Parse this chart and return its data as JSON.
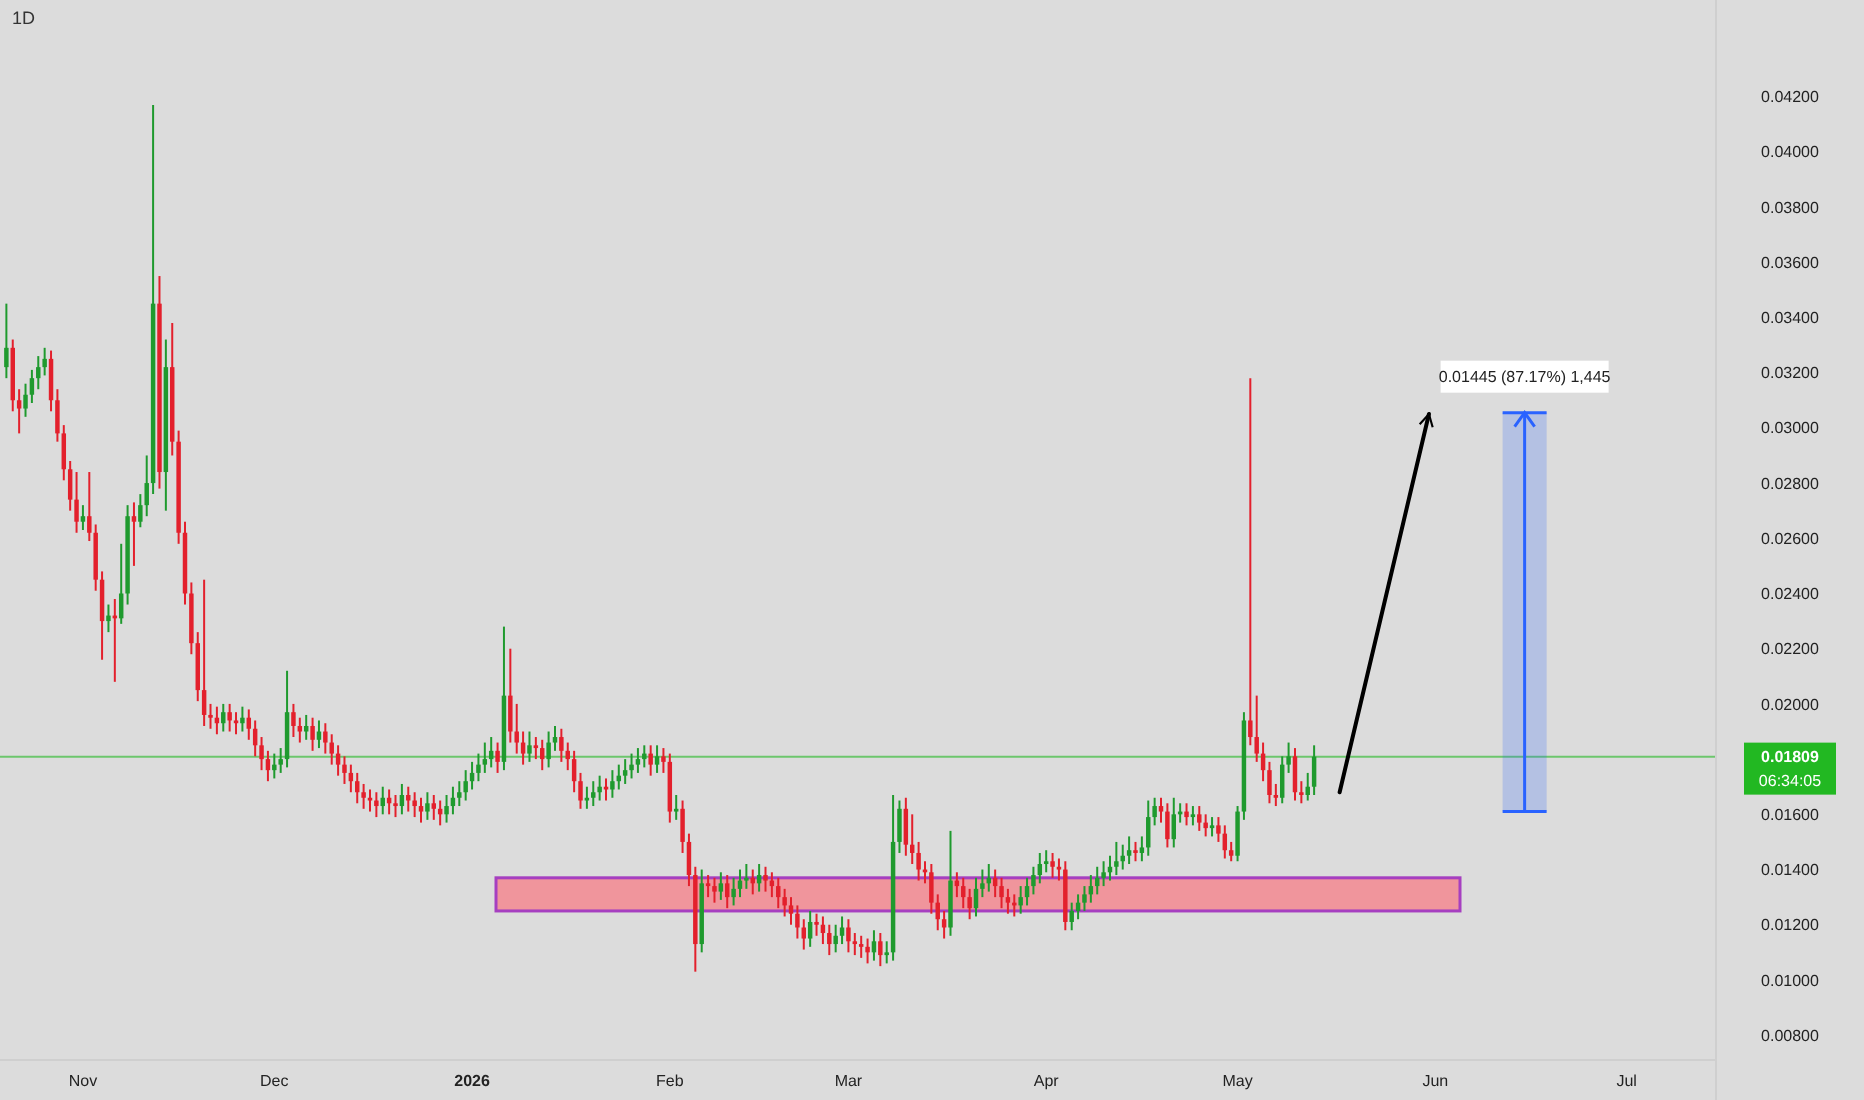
{
  "chart_data": {
    "type": "candlestick",
    "title": "1D",
    "x": [
      "2025-10-20",
      "2025-10-21",
      "2025-10-22",
      "2025-10-23",
      "2025-10-24",
      "2025-10-25",
      "2025-10-26",
      "2025-10-27",
      "2025-10-28",
      "2025-10-29",
      "2025-10-30",
      "2025-10-31",
      "2025-11-01",
      "2025-11-02",
      "2025-11-03",
      "2025-11-04",
      "2025-11-05",
      "2025-11-06",
      "2025-11-07",
      "2025-11-08",
      "2025-11-09",
      "2025-11-10",
      "2025-11-11",
      "2025-11-12",
      "2025-11-13",
      "2025-11-14",
      "2025-11-15",
      "2025-11-16",
      "2025-11-17",
      "2025-11-18",
      "2025-11-19",
      "2025-11-20",
      "2025-11-21",
      "2025-11-22",
      "2025-11-23",
      "2025-11-24",
      "2025-11-25",
      "2025-11-26",
      "2025-11-27",
      "2025-11-28",
      "2025-11-29",
      "2025-11-30",
      "2025-12-01",
      "2025-12-02",
      "2025-12-03",
      "2025-12-04",
      "2025-12-05",
      "2025-12-06",
      "2025-12-07",
      "2025-12-08",
      "2025-12-09",
      "2025-12-10",
      "2025-12-11",
      "2025-12-12",
      "2025-12-13",
      "2025-12-14",
      "2025-12-15",
      "2025-12-16",
      "2025-12-17",
      "2025-12-18",
      "2025-12-19",
      "2025-12-20",
      "2025-12-21",
      "2025-12-22",
      "2025-12-23",
      "2025-12-24",
      "2025-12-25",
      "2025-12-26",
      "2025-12-27",
      "2025-12-28",
      "2025-12-29",
      "2025-12-30",
      "2025-12-31",
      "2026-01-01",
      "2026-01-02",
      "2026-01-03",
      "2026-01-04",
      "2026-01-05",
      "2026-01-06",
      "2026-01-07",
      "2026-01-08",
      "2026-01-09",
      "2026-01-10",
      "2026-01-11",
      "2026-01-12",
      "2026-01-13",
      "2026-01-14",
      "2026-01-15",
      "2026-01-16",
      "2026-01-17",
      "2026-01-18",
      "2026-01-19",
      "2026-01-20",
      "2026-01-21",
      "2026-01-22",
      "2026-01-23",
      "2026-01-24",
      "2026-01-25",
      "2026-01-26",
      "2026-01-27",
      "2026-01-28",
      "2026-01-29",
      "2026-01-30",
      "2026-01-31",
      "2026-02-01",
      "2026-02-02",
      "2026-02-03",
      "2026-02-04",
      "2026-02-05",
      "2026-02-06",
      "2026-02-07",
      "2026-02-08",
      "2026-02-09",
      "2026-02-10",
      "2026-02-11",
      "2026-02-12",
      "2026-02-13",
      "2026-02-14",
      "2026-02-15",
      "2026-02-16",
      "2026-02-17",
      "2026-02-18",
      "2026-02-19",
      "2026-02-20",
      "2026-02-21",
      "2026-02-22",
      "2026-02-23",
      "2026-02-24",
      "2026-02-25",
      "2026-02-26",
      "2026-02-27",
      "2026-02-28",
      "2026-03-01",
      "2026-03-02",
      "2026-03-03",
      "2026-03-04",
      "2026-03-05",
      "2026-03-06",
      "2026-03-07",
      "2026-03-08",
      "2026-03-09",
      "2026-03-10",
      "2026-03-11",
      "2026-03-12",
      "2026-03-13",
      "2026-03-14",
      "2026-03-15",
      "2026-03-16",
      "2026-03-17",
      "2026-03-18",
      "2026-03-19",
      "2026-03-20",
      "2026-03-21",
      "2026-03-22",
      "2026-03-23",
      "2026-03-24",
      "2026-03-25",
      "2026-03-26",
      "2026-03-27",
      "2026-03-28",
      "2026-03-29",
      "2026-03-30",
      "2026-03-31",
      "2026-04-01",
      "2026-04-02",
      "2026-04-03",
      "2026-04-04",
      "2026-04-05",
      "2026-04-06",
      "2026-04-07",
      "2026-04-08",
      "2026-04-09",
      "2026-04-10",
      "2026-04-11",
      "2026-04-12",
      "2026-04-13",
      "2026-04-14",
      "2026-04-15",
      "2026-04-16",
      "2026-04-17",
      "2026-04-18",
      "2026-04-19",
      "2026-04-20",
      "2026-04-21",
      "2026-04-22",
      "2026-04-23",
      "2026-04-24",
      "2026-04-25",
      "2026-04-26",
      "2026-04-27",
      "2026-04-28",
      "2026-04-29",
      "2026-04-30",
      "2026-05-01",
      "2026-05-02",
      "2026-05-03",
      "2026-05-04",
      "2026-05-05",
      "2026-05-06",
      "2026-05-07",
      "2026-05-08",
      "2026-05-09",
      "2026-05-10",
      "2026-05-11",
      "2026-05-12",
      "2026-05-13"
    ],
    "ohlc": [
      [
        0.0322,
        0.0345,
        0.0318,
        0.0329
      ],
      [
        0.0329,
        0.0332,
        0.0306,
        0.031
      ],
      [
        0.031,
        0.0314,
        0.0298,
        0.0307
      ],
      [
        0.0307,
        0.0316,
        0.0304,
        0.0312
      ],
      [
        0.0312,
        0.0321,
        0.0309,
        0.0318
      ],
      [
        0.0318,
        0.0326,
        0.0314,
        0.0322
      ],
      [
        0.0322,
        0.0329,
        0.0319,
        0.0325
      ],
      [
        0.0325,
        0.0328,
        0.0306,
        0.031
      ],
      [
        0.031,
        0.0314,
        0.0295,
        0.0298
      ],
      [
        0.0298,
        0.0301,
        0.0281,
        0.0285
      ],
      [
        0.0285,
        0.0288,
        0.027,
        0.0274
      ],
      [
        0.0274,
        0.0284,
        0.0262,
        0.0266
      ],
      [
        0.0266,
        0.0272,
        0.0263,
        0.0268
      ],
      [
        0.0268,
        0.0284,
        0.0259,
        0.0262
      ],
      [
        0.0262,
        0.0265,
        0.0241,
        0.0245
      ],
      [
        0.0245,
        0.0248,
        0.0216,
        0.023
      ],
      [
        0.023,
        0.0236,
        0.0226,
        0.0232
      ],
      [
        0.0232,
        0.0238,
        0.0208,
        0.0231
      ],
      [
        0.0231,
        0.0258,
        0.0229,
        0.024
      ],
      [
        0.024,
        0.0272,
        0.0236,
        0.0268
      ],
      [
        0.0268,
        0.0273,
        0.025,
        0.0266
      ],
      [
        0.0266,
        0.0276,
        0.0264,
        0.0272
      ],
      [
        0.0272,
        0.029,
        0.0268,
        0.028
      ],
      [
        0.028,
        0.0417,
        0.0276,
        0.0345
      ],
      [
        0.0345,
        0.0355,
        0.0278,
        0.0284
      ],
      [
        0.0284,
        0.0332,
        0.027,
        0.0322
      ],
      [
        0.0322,
        0.0338,
        0.029,
        0.0295
      ],
      [
        0.0295,
        0.0299,
        0.0258,
        0.0262
      ],
      [
        0.0262,
        0.0266,
        0.0236,
        0.024
      ],
      [
        0.024,
        0.0244,
        0.0218,
        0.0222
      ],
      [
        0.0222,
        0.0226,
        0.0201,
        0.0205
      ],
      [
        0.0205,
        0.0245,
        0.0192,
        0.0196
      ],
      [
        0.0196,
        0.02,
        0.0191,
        0.0195
      ],
      [
        0.0195,
        0.0199,
        0.0189,
        0.0193
      ],
      [
        0.0193,
        0.02,
        0.019,
        0.0197
      ],
      [
        0.0197,
        0.02,
        0.019,
        0.0194
      ],
      [
        0.0194,
        0.0197,
        0.0189,
        0.0193
      ],
      [
        0.0193,
        0.0199,
        0.019,
        0.0195
      ],
      [
        0.0195,
        0.0198,
        0.0187,
        0.0191
      ],
      [
        0.0191,
        0.0194,
        0.0181,
        0.0185
      ],
      [
        0.0185,
        0.0188,
        0.0176,
        0.018
      ],
      [
        0.018,
        0.0183,
        0.0172,
        0.0176
      ],
      [
        0.0176,
        0.0182,
        0.0173,
        0.0178
      ],
      [
        0.0178,
        0.0184,
        0.0175,
        0.018
      ],
      [
        0.018,
        0.0212,
        0.0177,
        0.0197
      ],
      [
        0.0197,
        0.02,
        0.0188,
        0.0192
      ],
      [
        0.0192,
        0.0195,
        0.0186,
        0.019
      ],
      [
        0.019,
        0.0196,
        0.0187,
        0.0192
      ],
      [
        0.0192,
        0.0195,
        0.0183,
        0.0187
      ],
      [
        0.0187,
        0.0194,
        0.0184,
        0.019
      ],
      [
        0.019,
        0.0193,
        0.0182,
        0.0186
      ],
      [
        0.0186,
        0.0189,
        0.0178,
        0.0182
      ],
      [
        0.0182,
        0.0185,
        0.0174,
        0.0178
      ],
      [
        0.0178,
        0.0181,
        0.0171,
        0.0175
      ],
      [
        0.0175,
        0.0178,
        0.0168,
        0.0172
      ],
      [
        0.0172,
        0.0175,
        0.0164,
        0.0168
      ],
      [
        0.0168,
        0.0171,
        0.0162,
        0.0166
      ],
      [
        0.0166,
        0.0169,
        0.0161,
        0.0165
      ],
      [
        0.0165,
        0.0168,
        0.0159,
        0.0163
      ],
      [
        0.0163,
        0.017,
        0.016,
        0.0166
      ],
      [
        0.0166,
        0.0169,
        0.016,
        0.0164
      ],
      [
        0.0164,
        0.0167,
        0.0159,
        0.0163
      ],
      [
        0.0163,
        0.0171,
        0.016,
        0.0167
      ],
      [
        0.0167,
        0.017,
        0.0161,
        0.0165
      ],
      [
        0.0165,
        0.0168,
        0.0159,
        0.0163
      ],
      [
        0.0163,
        0.0166,
        0.0157,
        0.0161
      ],
      [
        0.0161,
        0.0168,
        0.0158,
        0.0164
      ],
      [
        0.0164,
        0.0167,
        0.0158,
        0.0162
      ],
      [
        0.0162,
        0.0165,
        0.0156,
        0.016
      ],
      [
        0.016,
        0.0167,
        0.0157,
        0.0163
      ],
      [
        0.0163,
        0.017,
        0.016,
        0.0166
      ],
      [
        0.0166,
        0.0172,
        0.0163,
        0.0168
      ],
      [
        0.0168,
        0.0176,
        0.0165,
        0.0172
      ],
      [
        0.0172,
        0.0179,
        0.0169,
        0.0175
      ],
      [
        0.0175,
        0.0182,
        0.0172,
        0.0178
      ],
      [
        0.0178,
        0.0186,
        0.0175,
        0.018
      ],
      [
        0.018,
        0.0188,
        0.0177,
        0.0183
      ],
      [
        0.0183,
        0.0186,
        0.0175,
        0.0179
      ],
      [
        0.0179,
        0.0228,
        0.0176,
        0.0203
      ],
      [
        0.0203,
        0.022,
        0.0186,
        0.019
      ],
      [
        0.019,
        0.02,
        0.0182,
        0.0186
      ],
      [
        0.0186,
        0.019,
        0.0178,
        0.0182
      ],
      [
        0.0182,
        0.019,
        0.0179,
        0.0185
      ],
      [
        0.0185,
        0.0188,
        0.018,
        0.0184
      ],
      [
        0.0184,
        0.0187,
        0.0176,
        0.018
      ],
      [
        0.018,
        0.019,
        0.0177,
        0.0186
      ],
      [
        0.0186,
        0.0192,
        0.0183,
        0.0188
      ],
      [
        0.0188,
        0.0191,
        0.0179,
        0.0183
      ],
      [
        0.0183,
        0.0186,
        0.0176,
        0.018
      ],
      [
        0.018,
        0.0183,
        0.0168,
        0.0172
      ],
      [
        0.0172,
        0.0175,
        0.0162,
        0.0165
      ],
      [
        0.0165,
        0.017,
        0.0162,
        0.0166
      ],
      [
        0.0166,
        0.0172,
        0.0163,
        0.0168
      ],
      [
        0.0168,
        0.0174,
        0.0165,
        0.017
      ],
      [
        0.017,
        0.0173,
        0.0165,
        0.0169
      ],
      [
        0.0169,
        0.0176,
        0.0166,
        0.0172
      ],
      [
        0.0172,
        0.0178,
        0.0169,
        0.0174
      ],
      [
        0.0174,
        0.018,
        0.0171,
        0.0176
      ],
      [
        0.0176,
        0.0182,
        0.0173,
        0.0178
      ],
      [
        0.0178,
        0.0184,
        0.0175,
        0.018
      ],
      [
        0.018,
        0.0185,
        0.0177,
        0.0182
      ],
      [
        0.0182,
        0.0185,
        0.0174,
        0.0178
      ],
      [
        0.0178,
        0.0185,
        0.0175,
        0.0181
      ],
      [
        0.0181,
        0.0184,
        0.0175,
        0.0179
      ],
      [
        0.0179,
        0.0182,
        0.0157,
        0.0161
      ],
      [
        0.0161,
        0.0167,
        0.0158,
        0.0162
      ],
      [
        0.0162,
        0.0165,
        0.0146,
        0.015
      ],
      [
        0.015,
        0.0153,
        0.0134,
        0.0138
      ],
      [
        0.0138,
        0.0141,
        0.0103,
        0.0113
      ],
      [
        0.0113,
        0.014,
        0.011,
        0.0135
      ],
      [
        0.0135,
        0.0138,
        0.013,
        0.0134
      ],
      [
        0.0134,
        0.0137,
        0.0128,
        0.0132
      ],
      [
        0.0132,
        0.0139,
        0.0129,
        0.0135
      ],
      [
        0.0135,
        0.0138,
        0.0126,
        0.013
      ],
      [
        0.013,
        0.0137,
        0.0127,
        0.0133
      ],
      [
        0.0133,
        0.014,
        0.013,
        0.0136
      ],
      [
        0.0136,
        0.0142,
        0.0133,
        0.0137
      ],
      [
        0.0137,
        0.014,
        0.0131,
        0.0135
      ],
      [
        0.0135,
        0.0142,
        0.0132,
        0.0138
      ],
      [
        0.0138,
        0.0141,
        0.0132,
        0.0136
      ],
      [
        0.0136,
        0.0139,
        0.013,
        0.0134
      ],
      [
        0.0134,
        0.0137,
        0.0126,
        0.013
      ],
      [
        0.013,
        0.0133,
        0.0123,
        0.0127
      ],
      [
        0.0127,
        0.013,
        0.012,
        0.0124
      ],
      [
        0.0124,
        0.0127,
        0.0115,
        0.0119
      ],
      [
        0.0119,
        0.0122,
        0.0111,
        0.0115
      ],
      [
        0.0115,
        0.0125,
        0.0112,
        0.0121
      ],
      [
        0.0121,
        0.0124,
        0.0116,
        0.012
      ],
      [
        0.012,
        0.0123,
        0.0113,
        0.0117
      ],
      [
        0.0117,
        0.012,
        0.0109,
        0.0113
      ],
      [
        0.0113,
        0.012,
        0.011,
        0.0116
      ],
      [
        0.0116,
        0.0123,
        0.0113,
        0.0119
      ],
      [
        0.0119,
        0.0122,
        0.011,
        0.0114
      ],
      [
        0.0114,
        0.0117,
        0.0109,
        0.0113
      ],
      [
        0.0113,
        0.0116,
        0.0108,
        0.0112
      ],
      [
        0.0112,
        0.0115,
        0.0106,
        0.011
      ],
      [
        0.011,
        0.0118,
        0.0107,
        0.0114
      ],
      [
        0.0114,
        0.0117,
        0.0105,
        0.0109
      ],
      [
        0.0109,
        0.0114,
        0.0106,
        0.011
      ],
      [
        0.011,
        0.0167,
        0.0107,
        0.015
      ],
      [
        0.015,
        0.0165,
        0.0146,
        0.0162
      ],
      [
        0.0162,
        0.0166,
        0.0145,
        0.0149
      ],
      [
        0.0149,
        0.016,
        0.0142,
        0.0146
      ],
      [
        0.0146,
        0.015,
        0.0136,
        0.014
      ],
      [
        0.014,
        0.0143,
        0.0135,
        0.0139
      ],
      [
        0.0139,
        0.0142,
        0.0124,
        0.0128
      ],
      [
        0.0128,
        0.0131,
        0.0118,
        0.0122
      ],
      [
        0.0122,
        0.0125,
        0.0115,
        0.0119
      ],
      [
        0.0119,
        0.0154,
        0.0116,
        0.0136
      ],
      [
        0.0136,
        0.0139,
        0.013,
        0.0134
      ],
      [
        0.0134,
        0.0137,
        0.0126,
        0.013
      ],
      [
        0.013,
        0.0133,
        0.0122,
        0.0126
      ],
      [
        0.0126,
        0.0137,
        0.0123,
        0.0133
      ],
      [
        0.0133,
        0.014,
        0.013,
        0.0135
      ],
      [
        0.0135,
        0.0142,
        0.0132,
        0.0137
      ],
      [
        0.0137,
        0.014,
        0.013,
        0.0134
      ],
      [
        0.0134,
        0.0137,
        0.0126,
        0.013
      ],
      [
        0.013,
        0.0133,
        0.0124,
        0.0128
      ],
      [
        0.0128,
        0.0131,
        0.0123,
        0.0127
      ],
      [
        0.0127,
        0.0134,
        0.0124,
        0.013
      ],
      [
        0.013,
        0.0137,
        0.0127,
        0.0134
      ],
      [
        0.0134,
        0.0141,
        0.0131,
        0.0138
      ],
      [
        0.0138,
        0.0146,
        0.0135,
        0.0142
      ],
      [
        0.0142,
        0.0147,
        0.0139,
        0.0143
      ],
      [
        0.0143,
        0.0146,
        0.0137,
        0.0141
      ],
      [
        0.0141,
        0.0144,
        0.0136,
        0.014
      ],
      [
        0.014,
        0.0143,
        0.0118,
        0.0121
      ],
      [
        0.0121,
        0.0128,
        0.0118,
        0.0125
      ],
      [
        0.0125,
        0.0131,
        0.0122,
        0.0128
      ],
      [
        0.0128,
        0.0134,
        0.0125,
        0.0131
      ],
      [
        0.0131,
        0.0138,
        0.0128,
        0.0134
      ],
      [
        0.0134,
        0.0141,
        0.0131,
        0.0137
      ],
      [
        0.0137,
        0.0143,
        0.0134,
        0.0139
      ],
      [
        0.0139,
        0.0145,
        0.0136,
        0.0141
      ],
      [
        0.0141,
        0.015,
        0.0138,
        0.0143
      ],
      [
        0.0143,
        0.0149,
        0.014,
        0.0145
      ],
      [
        0.0145,
        0.0152,
        0.0142,
        0.0147
      ],
      [
        0.0147,
        0.015,
        0.0143,
        0.0146
      ],
      [
        0.0146,
        0.0152,
        0.0143,
        0.0148
      ],
      [
        0.0148,
        0.0165,
        0.0145,
        0.0159
      ],
      [
        0.0159,
        0.0166,
        0.0156,
        0.0163
      ],
      [
        0.0163,
        0.0166,
        0.0157,
        0.0161
      ],
      [
        0.0161,
        0.0164,
        0.0148,
        0.0151
      ],
      [
        0.0151,
        0.0166,
        0.0148,
        0.016
      ],
      [
        0.016,
        0.0164,
        0.0157,
        0.0161
      ],
      [
        0.0161,
        0.0164,
        0.0156,
        0.0159
      ],
      [
        0.0159,
        0.0163,
        0.0156,
        0.016
      ],
      [
        0.016,
        0.0163,
        0.0154,
        0.0157
      ],
      [
        0.0157,
        0.016,
        0.0152,
        0.0155
      ],
      [
        0.0155,
        0.0159,
        0.0152,
        0.0156
      ],
      [
        0.0156,
        0.0159,
        0.015,
        0.0153
      ],
      [
        0.0153,
        0.0156,
        0.0144,
        0.0147
      ],
      [
        0.0147,
        0.015,
        0.0143,
        0.0145
      ],
      [
        0.0145,
        0.0163,
        0.0143,
        0.0161
      ],
      [
        0.0161,
        0.0197,
        0.0158,
        0.0194
      ],
      [
        0.0194,
        0.0318,
        0.0185,
        0.0188
      ],
      [
        0.0188,
        0.0203,
        0.0179,
        0.0182
      ],
      [
        0.0182,
        0.0186,
        0.0172,
        0.0176
      ],
      [
        0.0176,
        0.0179,
        0.0164,
        0.0167
      ],
      [
        0.0167,
        0.0171,
        0.0163,
        0.0166
      ],
      [
        0.0166,
        0.0181,
        0.0164,
        0.0178
      ],
      [
        0.0178,
        0.0186,
        0.0175,
        0.0181
      ],
      [
        0.0181,
        0.0184,
        0.0165,
        0.0168
      ],
      [
        0.0168,
        0.0172,
        0.0164,
        0.0167
      ],
      [
        0.0167,
        0.0175,
        0.0165,
        0.017
      ],
      [
        0.017,
        0.0185,
        0.0167,
        0.01809
      ]
    ],
    "series": [
      {
        "type": "bar",
        "x": [
          "2026-06-15"
        ],
        "base": [
          0.0161
        ],
        "values": [
          0.01445
        ],
        "color": "#2962ff"
      },
      {
        "type": "line",
        "x": [
          "2026-05-17",
          "2026-05-31"
        ],
        "values": [
          0.0168,
          0.0305
        ],
        "color": "#000000"
      }
    ],
    "xlim": [
      "2025-10-19",
      "2026-07-15"
    ],
    "xticks": [
      {
        "value": "2025-11-01",
        "label": "Nov"
      },
      {
        "value": "2025-12-01",
        "label": "Dec"
      },
      {
        "value": "2026-01-01",
        "label": "2026"
      },
      {
        "value": "2026-02-01",
        "label": "Feb"
      },
      {
        "value": "2026-03-01",
        "label": "Mar"
      },
      {
        "value": "2026-04-01",
        "label": "Apr"
      },
      {
        "value": "2026-05-01",
        "label": "May"
      },
      {
        "value": "2026-06-01",
        "label": "Jun"
      },
      {
        "value": "2026-07-01",
        "label": "Jul"
      }
    ],
    "ylim": [
      0.0071,
      0.0455
    ],
    "yticks": [
      {
        "value": 0.008,
        "label": "0.00800"
      },
      {
        "value": 0.01,
        "label": "0.01000"
      },
      {
        "value": 0.012,
        "label": "0.01200"
      },
      {
        "value": 0.014,
        "label": "0.01400"
      },
      {
        "value": 0.016,
        "label": "0.01600"
      },
      {
        "value": 0.02,
        "label": "0.02000"
      },
      {
        "value": 0.022,
        "label": "0.02200"
      },
      {
        "value": 0.024,
        "label": "0.02400"
      },
      {
        "value": 0.026,
        "label": "0.02600"
      },
      {
        "value": 0.028,
        "label": "0.02800"
      },
      {
        "value": 0.03,
        "label": "0.03000"
      },
      {
        "value": 0.032,
        "label": "0.03200"
      },
      {
        "value": 0.034,
        "label": "0.03400"
      },
      {
        "value": 0.036,
        "label": "0.03600"
      },
      {
        "value": 0.038,
        "label": "0.03800"
      },
      {
        "value": 0.04,
        "label": "0.04000"
      },
      {
        "value": 0.042,
        "label": "0.04200"
      }
    ],
    "bands": [
      {
        "axis": "y",
        "from": 0.0125,
        "to": 0.0137,
        "color": "#f0959c"
      }
    ],
    "ref_lines": [
      {
        "axis": "y",
        "value": 0.01809,
        "label": "0.01809",
        "color": "#22b822"
      }
    ],
    "annotations": [
      "0.01445 (87.17%) 1,445",
      "06:34:05"
    ],
    "grid": false
  }
}
